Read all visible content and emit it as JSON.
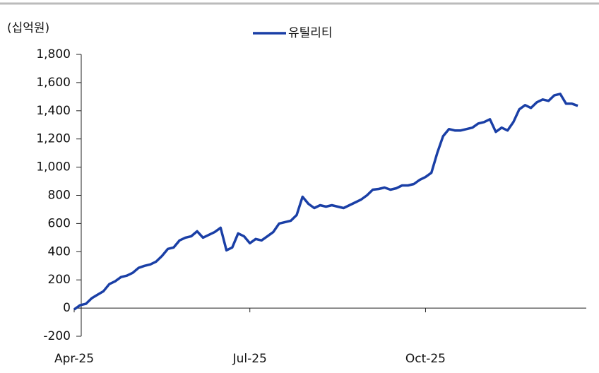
{
  "chart_data": {
    "type": "line",
    "unit_label": "(십억원)",
    "categories": [
      "Apr-25",
      null,
      null,
      null,
      null,
      null,
      null,
      null,
      null,
      null,
      null,
      null,
      null,
      null,
      null,
      null,
      null,
      null,
      null,
      null,
      null,
      null,
      null,
      null,
      null,
      null,
      null,
      null,
      null,
      null,
      "Jul-25",
      null,
      null,
      null,
      null,
      null,
      null,
      null,
      null,
      null,
      null,
      null,
      null,
      null,
      null,
      null,
      null,
      null,
      null,
      null,
      null,
      null,
      null,
      null,
      null,
      null,
      null,
      null,
      null,
      null,
      "Oct-25",
      null,
      null,
      null,
      null,
      null,
      null,
      null,
      null,
      null,
      null,
      null,
      null,
      null,
      null,
      null,
      null,
      null,
      null,
      null,
      null,
      null,
      null,
      null,
      null,
      null,
      null
    ],
    "series": [
      {
        "name": "유틸리티",
        "color": "#1a3fa6",
        "values": [
          -10,
          20,
          30,
          70,
          95,
          120,
          170,
          190,
          220,
          230,
          250,
          285,
          300,
          310,
          330,
          370,
          420,
          430,
          480,
          500,
          510,
          545,
          500,
          520,
          540,
          570,
          410,
          430,
          530,
          510,
          460,
          490,
          480,
          510,
          540,
          600,
          610,
          620,
          660,
          790,
          740,
          710,
          730,
          720,
          730,
          720,
          710,
          730,
          750,
          770,
          800,
          840,
          845,
          855,
          840,
          850,
          870,
          870,
          880,
          910,
          930,
          960,
          1100,
          1220,
          1270,
          1260,
          1260,
          1270,
          1280,
          1310,
          1320,
          1340,
          1250,
          1280,
          1260,
          1320,
          1410,
          1440,
          1420,
          1460,
          1480,
          1470,
          1510,
          1520,
          1450,
          1450,
          1435
        ]
      }
    ],
    "ylim": [
      -200,
      1800
    ],
    "yticks": [
      -200,
      0,
      200,
      400,
      600,
      800,
      {
        "value": 1000,
        "label": "1,000"
      },
      {
        "value": 1200,
        "label": "1,200"
      },
      {
        "value": 1400,
        "label": "1,400"
      },
      {
        "value": 1600,
        "label": "1,600"
      },
      {
        "value": 1800,
        "label": "1,800"
      }
    ],
    "legend": "top"
  }
}
